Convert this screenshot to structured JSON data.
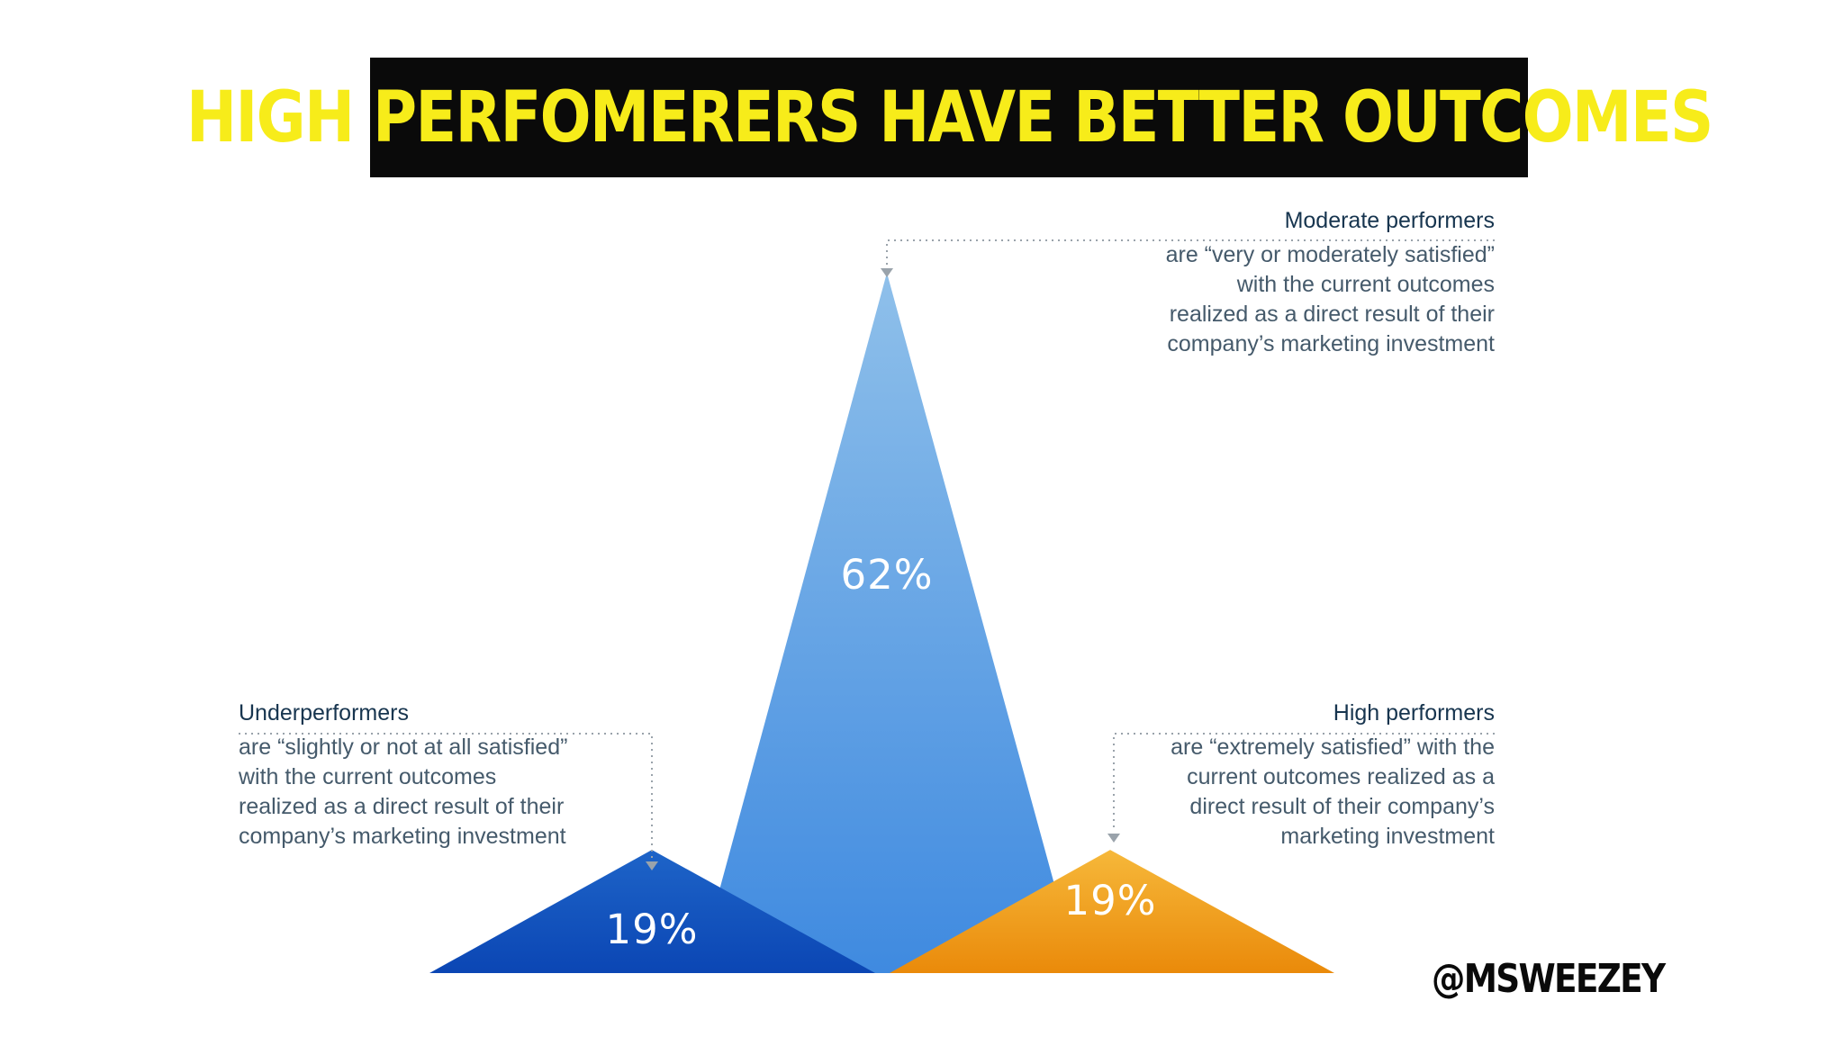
{
  "title": "HIGH PERFOMERERS HAVE BETTER OUTCOMES",
  "handle": "@MSWEEZEY",
  "colors": {
    "title_bg": "#0a0a0a",
    "title_text": "#f7ec1a",
    "under_top": "#1e64c8",
    "under_bottom": "#0b46b4",
    "moderate_top": "#8fc0ea",
    "moderate_bottom": "#3f8ae0",
    "high_top": "#f6b83a",
    "high_bottom": "#ea8a0a"
  },
  "chart_data": {
    "type": "area",
    "unit": "%",
    "categories": [
      "Underperformers",
      "Moderate performers",
      "High performers"
    ],
    "values": [
      19,
      62,
      19
    ],
    "value_labels": [
      "19%",
      "62%",
      "19%"
    ],
    "descriptions": [
      "are “slightly or not at all satisfied”\nwith the current outcomes\nrealized as a direct result of their\ncompany’s marketing investment",
      "are “very or moderately satisfied”\nwith the current outcomes\nrealized as a direct result of their\ncompany’s marketing investment",
      "are “extremely satisfied” with the\ncurrent outcomes realized as a\ndirect result of their company’s\nmarketing investment"
    ]
  }
}
